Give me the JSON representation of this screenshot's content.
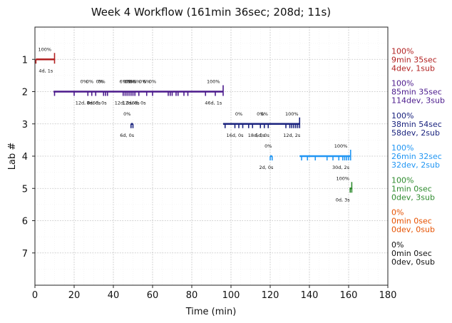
{
  "chart_data": {
    "type": "timeline",
    "title": "Week 4 Workflow (161min 36sec; 208d; 11s)",
    "xlabel": "Time (min)",
    "ylabel": "Lab #",
    "xlim": [
      0,
      180
    ],
    "ylim": [
      8,
      0
    ],
    "xticks": [
      0,
      20,
      40,
      60,
      80,
      100,
      120,
      140,
      160,
      180
    ],
    "yticks": [
      1,
      2,
      3,
      4,
      5,
      6,
      7
    ],
    "grid": true,
    "labs": [
      {
        "lab": 1,
        "color": "#b22222",
        "segment": [
          0.5,
          10
        ],
        "start_label": "4d, 1s",
        "pct_labels": [
          {
            "x": 5,
            "text": "100%"
          }
        ],
        "ticks": [
          0.5,
          10
        ],
        "summary": [
          "100%",
          "9min 35sec",
          "4dev, 1sub"
        ]
      },
      {
        "lab": 2,
        "color": "#4b1a8c",
        "segment": [
          9.5,
          96
        ],
        "start_label": "12d, 0s",
        "pct_labels": [
          {
            "x": 25,
            "text": "0%"
          },
          {
            "x": 28,
            "text": "0%"
          },
          {
            "x": 33,
            "text": "0%"
          },
          {
            "x": 34,
            "text": "0%"
          },
          {
            "x": 45,
            "text": "6%"
          },
          {
            "x": 47,
            "text": "0%"
          },
          {
            "x": 48,
            "text": "0%"
          },
          {
            "x": 49,
            "text": "0%"
          },
          {
            "x": 50,
            "text": "0%"
          },
          {
            "x": 52,
            "text": "6%"
          },
          {
            "x": 55,
            "text": "0%"
          },
          {
            "x": 57,
            "text": "6%"
          },
          {
            "x": 60,
            "text": "0%"
          },
          {
            "x": 91,
            "text": "100%"
          }
        ],
        "bottom_labels": [
          {
            "x": 25,
            "text": "12d, 0s"
          },
          {
            "x": 30,
            "text": "8d, 0s"
          },
          {
            "x": 33,
            "text": "6d, 0s"
          },
          {
            "x": 45,
            "text": "12d, 0s"
          },
          {
            "x": 49,
            "text": "12d, 0s"
          },
          {
            "x": 53,
            "text": "6d, 0s"
          },
          {
            "x": 91,
            "text": "46d, 1s"
          }
        ],
        "ticks": [
          10,
          20,
          27,
          29,
          31,
          35,
          36,
          37,
          45,
          46,
          47,
          48,
          49,
          50,
          51,
          53,
          57,
          60,
          68,
          69,
          70,
          72,
          73,
          76,
          78,
          87,
          92,
          96
        ],
        "summary": [
          "100%",
          "85min 35sec",
          "114dev, 3sub"
        ]
      },
      {
        "lab": 3,
        "color": "#1a237e",
        "segment": [
          96,
          135
        ],
        "start_label": "6d, 0s",
        "pct_labels": [
          {
            "x": 47,
            "text": "0%"
          },
          {
            "x": 104,
            "text": "0%"
          },
          {
            "x": 115,
            "text": "0%"
          },
          {
            "x": 117,
            "text": "0%"
          },
          {
            "x": 131,
            "text": "100%"
          }
        ],
        "bottom_labels": [
          {
            "x": 47,
            "text": "6d, 0s"
          },
          {
            "x": 102,
            "text": "16d, 0s"
          },
          {
            "x": 113,
            "text": "18d, 0s"
          },
          {
            "x": 116,
            "text": "6d, 0s"
          },
          {
            "x": 131,
            "text": "12d, 2s"
          }
        ],
        "extra_segment": [
          49,
          50
        ],
        "ticks": [
          49,
          50,
          97,
          102,
          104,
          106,
          109,
          111,
          115,
          117,
          119,
          128,
          130,
          131,
          132,
          133,
          134,
          135
        ],
        "summary": [
          "100%",
          "38min 54sec",
          "58dev, 2sub"
        ]
      },
      {
        "lab": 4,
        "color": "#2196f3",
        "segment": [
          135,
          161
        ],
        "start_label": "2d, 0s",
        "pct_labels": [
          {
            "x": 119,
            "text": "0%"
          },
          {
            "x": 156,
            "text": "100%"
          }
        ],
        "bottom_labels": [
          {
            "x": 118,
            "text": "2d, 0s"
          },
          {
            "x": 156,
            "text": "30d, 2s"
          }
        ],
        "extra_segment": [
          120,
          121
        ],
        "ticks": [
          120,
          121,
          136,
          139,
          143,
          149,
          152,
          155,
          157,
          158,
          159,
          160,
          161
        ],
        "summary": [
          "100%",
          "26min 32sec",
          "32dev, 2sub"
        ]
      },
      {
        "lab": 5,
        "color": "#2e8b2e",
        "segment": [
          160.5,
          161.6
        ],
        "start_label": "0d, 3s",
        "pct_labels": [
          {
            "x": 157,
            "text": "100%"
          }
        ],
        "bottom_labels": [
          {
            "x": 157,
            "text": "0d, 3s"
          }
        ],
        "ticks": [
          160.8,
          161.6
        ],
        "summary": [
          "100%",
          "1min 0sec",
          "0dev, 3sub"
        ]
      },
      {
        "lab": 6,
        "color": "#e65100",
        "summary": [
          "0%",
          "0min 0sec",
          "0dev, 0sub"
        ]
      },
      {
        "lab": 7,
        "color": "#111111",
        "summary": [
          "0%",
          "0min 0sec",
          "0dev, 0sub"
        ]
      }
    ]
  }
}
